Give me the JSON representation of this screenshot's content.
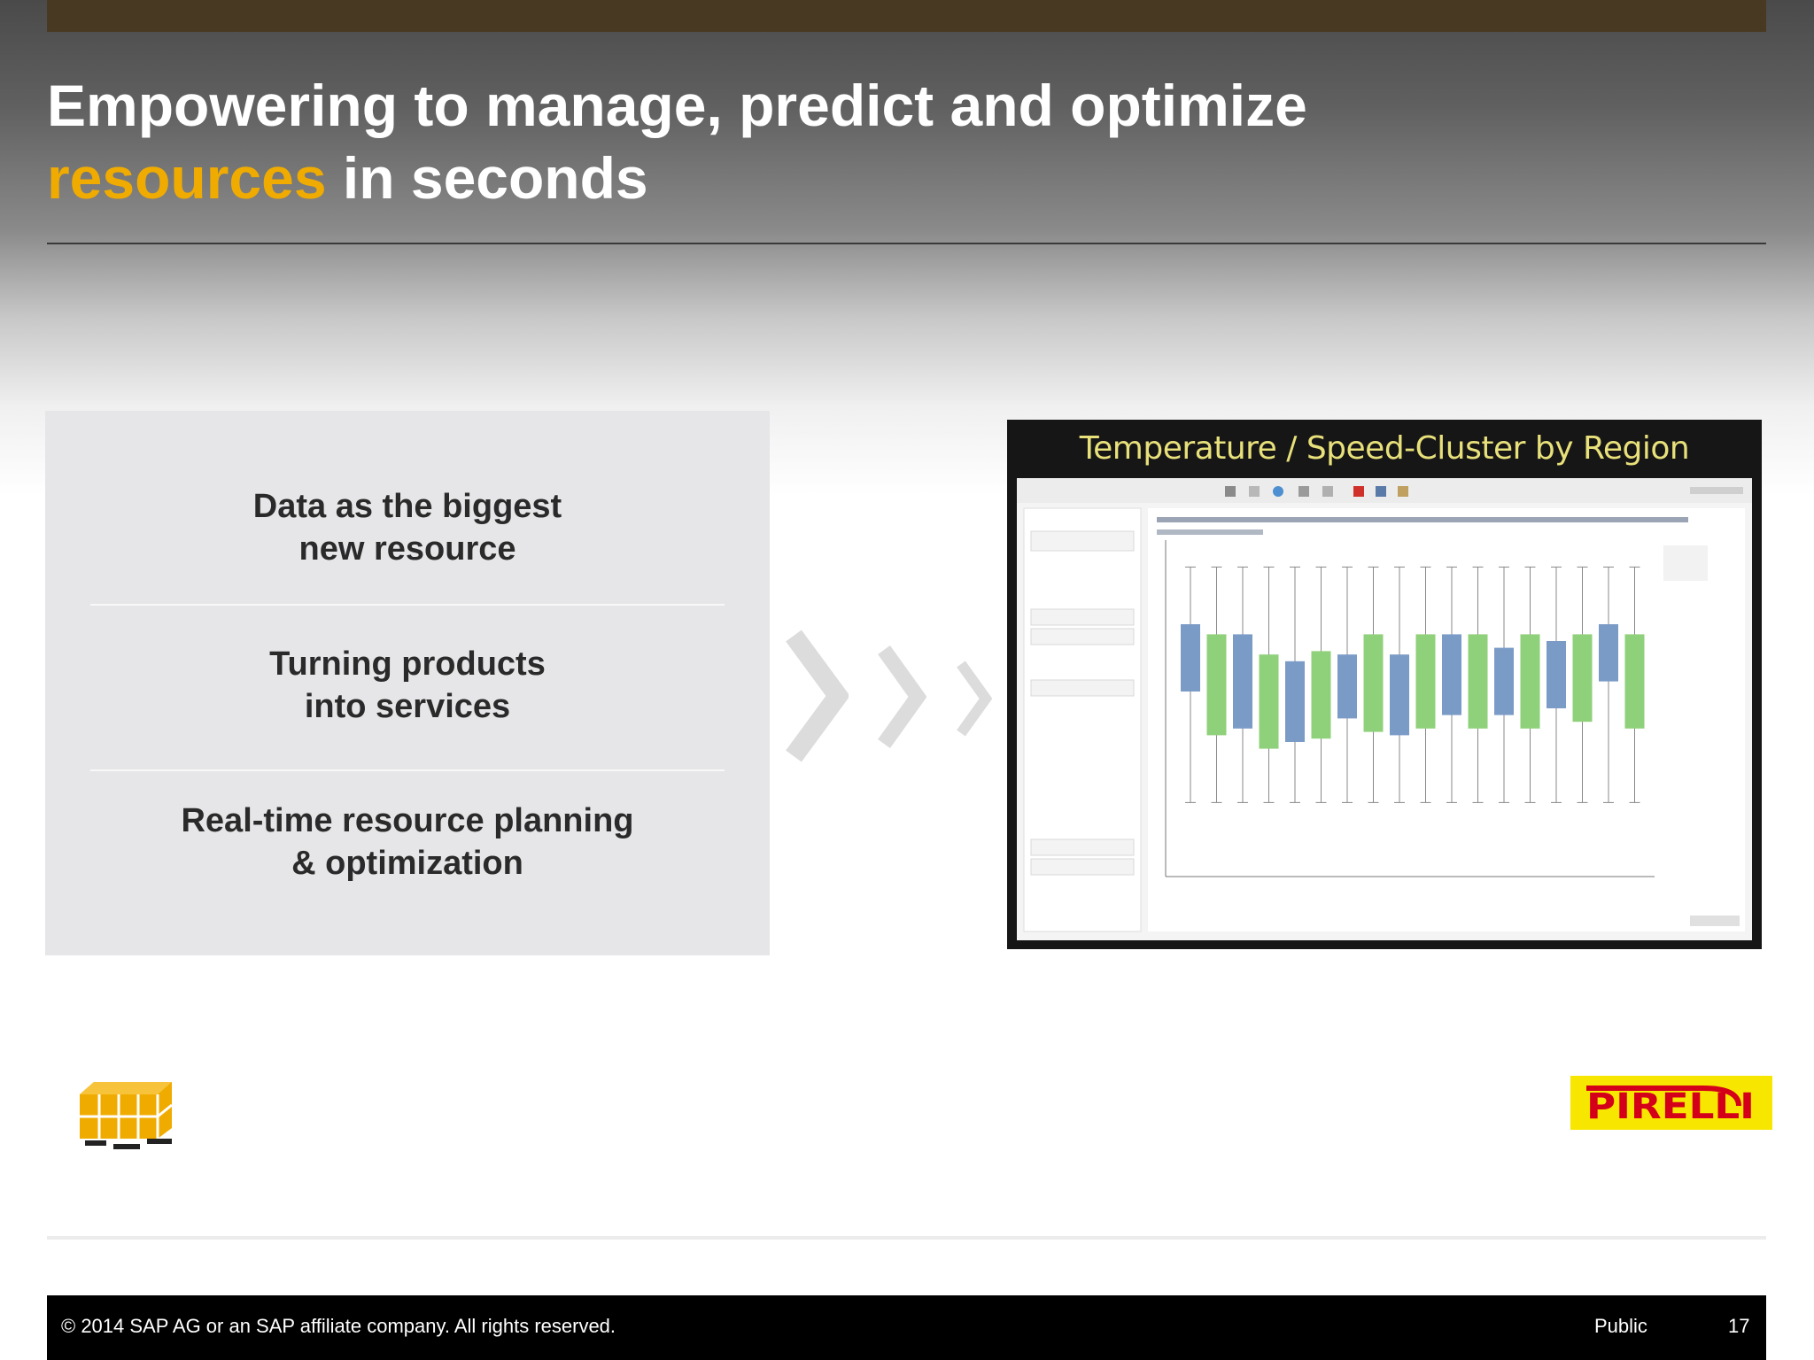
{
  "slide": {
    "title_line1": "Empowering to manage, predict and optimize",
    "title_accent": "resources",
    "title_rest": " in seconds"
  },
  "panel": {
    "items": [
      {
        "line1": "Data as the biggest",
        "line2": "new resource"
      },
      {
        "line1": "Turning products",
        "line2": "into services"
      },
      {
        "line1": "Real-time resource planning",
        "line2": "& optimization"
      }
    ]
  },
  "screenshot": {
    "title": "Temperature / Speed-Cluster by Region",
    "chart_data": {
      "type": "boxplot",
      "title": "",
      "series": [
        {
          "name": "",
          "color": "#7b9bc7"
        },
        {
          "name": "",
          "color": "#8fd07a"
        }
      ],
      "boxes": [
        {
          "color": "#7b9bc7",
          "q1": 0.55,
          "q3": 0.75
        },
        {
          "color": "#8fd07a",
          "q1": 0.42,
          "q3": 0.72
        },
        {
          "color": "#7b9bc7",
          "q1": 0.44,
          "q3": 0.72
        },
        {
          "color": "#8fd07a",
          "q1": 0.38,
          "q3": 0.66
        },
        {
          "color": "#7b9bc7",
          "q1": 0.4,
          "q3": 0.64
        },
        {
          "color": "#8fd07a",
          "q1": 0.41,
          "q3": 0.67
        },
        {
          "color": "#7b9bc7",
          "q1": 0.47,
          "q3": 0.66
        },
        {
          "color": "#8fd07a",
          "q1": 0.43,
          "q3": 0.72
        },
        {
          "color": "#7b9bc7",
          "q1": 0.42,
          "q3": 0.66
        },
        {
          "color": "#8fd07a",
          "q1": 0.44,
          "q3": 0.72
        },
        {
          "color": "#7b9bc7",
          "q1": 0.48,
          "q3": 0.72
        },
        {
          "color": "#8fd07a",
          "q1": 0.44,
          "q3": 0.72
        },
        {
          "color": "#7b9bc7",
          "q1": 0.48,
          "q3": 0.68
        },
        {
          "color": "#8fd07a",
          "q1": 0.44,
          "q3": 0.72
        },
        {
          "color": "#7b9bc7",
          "q1": 0.5,
          "q3": 0.7
        },
        {
          "color": "#8fd07a",
          "q1": 0.46,
          "q3": 0.72
        },
        {
          "color": "#7b9bc7",
          "q1": 0.58,
          "q3": 0.75
        },
        {
          "color": "#8fd07a",
          "q1": 0.44,
          "q3": 0.72
        }
      ]
    }
  },
  "footer": {
    "copyright": "©  2014 SAP AG or an SAP affiliate company. All rights reserved.",
    "classification": "Public",
    "page": "17"
  },
  "logo": {
    "brand": "PIRELLI",
    "bg_color": "#f7e600",
    "fg_color": "#d4001a"
  },
  "colors": {
    "accent": "#f0ab00",
    "topbar": "#483a22",
    "panel": "#e6e6e8"
  },
  "icons": [
    "pallet-boxes-icon",
    "chevron-right-icon"
  ]
}
